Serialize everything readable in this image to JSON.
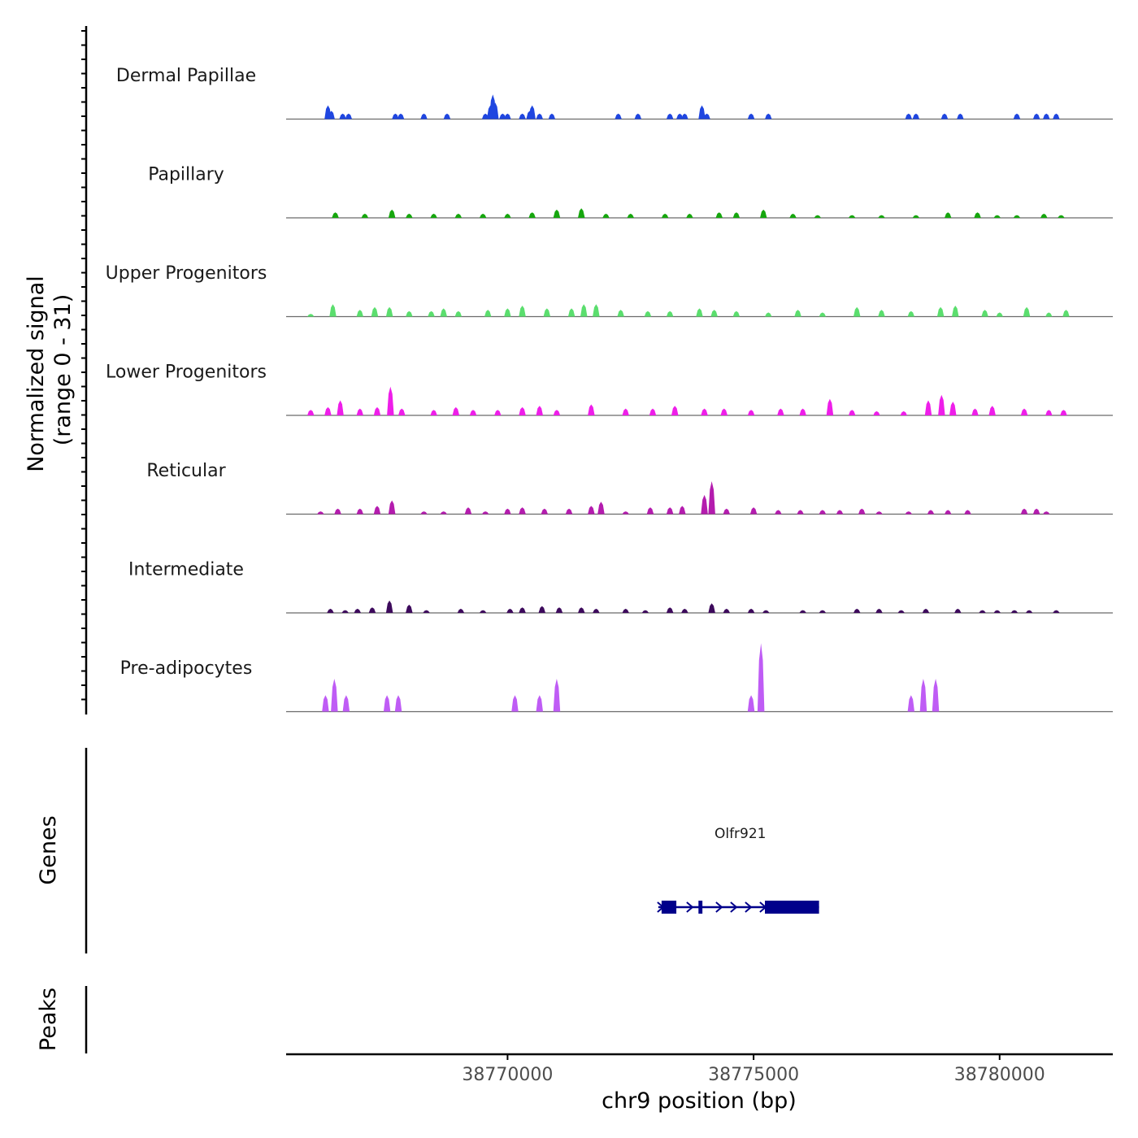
{
  "chart_data": {
    "type": "area",
    "title": "",
    "signal_axis_label_line1": "Normalized signal",
    "signal_axis_label_line2": "(range 0 - 31)",
    "genes_axis_label": "Genes",
    "peaks_axis_label": "Peaks",
    "xlabel": "chr9 position (bp)",
    "xlim": [
      38765500,
      38782300
    ],
    "ylim": [
      0,
      31
    ],
    "x_ticks": [
      38770000,
      38775000,
      38780000
    ],
    "x_tick_labels": [
      "38770000",
      "38775000",
      "38780000"
    ],
    "tracks": [
      {
        "name": "Dermal Papillae",
        "color": "#1f46e0",
        "peaks": [
          [
            38766350,
            5
          ],
          [
            38766420,
            3
          ],
          [
            38766650,
            2
          ],
          [
            38766770,
            2
          ],
          [
            38767720,
            2
          ],
          [
            38767830,
            2
          ],
          [
            38768300,
            2
          ],
          [
            38768770,
            2
          ],
          [
            38769550,
            2
          ],
          [
            38769650,
            5
          ],
          [
            38769700,
            9
          ],
          [
            38769750,
            6
          ],
          [
            38769900,
            2
          ],
          [
            38770000,
            2
          ],
          [
            38770300,
            2
          ],
          [
            38770450,
            3
          ],
          [
            38770500,
            5
          ],
          [
            38770650,
            2
          ],
          [
            38770900,
            2
          ],
          [
            38772250,
            2
          ],
          [
            38772650,
            2
          ],
          [
            38773300,
            2
          ],
          [
            38773500,
            2
          ],
          [
            38773600,
            2
          ],
          [
            38773950,
            5
          ],
          [
            38774050,
            2
          ],
          [
            38774950,
            2
          ],
          [
            38775300,
            2
          ],
          [
            38778150,
            2
          ],
          [
            38778300,
            2
          ],
          [
            38778880,
            2
          ],
          [
            38779200,
            2
          ],
          [
            38780350,
            2
          ],
          [
            38780750,
            2
          ],
          [
            38780950,
            2
          ],
          [
            38781150,
            2
          ]
        ]
      },
      {
        "name": "Papillary",
        "color": "#16a60e",
        "peaks": [
          [
            38766500,
            2
          ],
          [
            38767100,
            1.5
          ],
          [
            38767650,
            3
          ],
          [
            38768000,
            1.5
          ],
          [
            38768500,
            1.5
          ],
          [
            38769000,
            1.5
          ],
          [
            38769500,
            1.5
          ],
          [
            38770000,
            1.5
          ],
          [
            38770500,
            2
          ],
          [
            38771000,
            3
          ],
          [
            38771500,
            3.5
          ],
          [
            38772000,
            1.5
          ],
          [
            38772500,
            1.5
          ],
          [
            38773200,
            1.5
          ],
          [
            38773700,
            1.5
          ],
          [
            38774300,
            2
          ],
          [
            38774650,
            2
          ],
          [
            38775200,
            3
          ],
          [
            38775800,
            1.5
          ],
          [
            38776300,
            1
          ],
          [
            38777000,
            1
          ],
          [
            38777600,
            1
          ],
          [
            38778300,
            1
          ],
          [
            38778950,
            2
          ],
          [
            38779550,
            2
          ],
          [
            38779950,
            1
          ],
          [
            38780350,
            1
          ],
          [
            38780900,
            1.5
          ],
          [
            38781250,
            1
          ]
        ]
      },
      {
        "name": "Upper Progenitors",
        "color": "#5bde6e",
        "peaks": [
          [
            38766000,
            1
          ],
          [
            38766450,
            4.5
          ],
          [
            38767000,
            2.5
          ],
          [
            38767300,
            3.5
          ],
          [
            38767600,
            3.5
          ],
          [
            38768000,
            2
          ],
          [
            38768450,
            2
          ],
          [
            38768700,
            3
          ],
          [
            38769000,
            2
          ],
          [
            38769600,
            2.5
          ],
          [
            38770000,
            3
          ],
          [
            38770300,
            4
          ],
          [
            38770800,
            3
          ],
          [
            38771300,
            3
          ],
          [
            38771550,
            4.5
          ],
          [
            38771800,
            4.5
          ],
          [
            38772300,
            2.5
          ],
          [
            38772850,
            2
          ],
          [
            38773300,
            2
          ],
          [
            38773900,
            3
          ],
          [
            38774200,
            2.5
          ],
          [
            38774650,
            2
          ],
          [
            38775300,
            1.5
          ],
          [
            38775900,
            2.5
          ],
          [
            38776400,
            1.5
          ],
          [
            38777100,
            3.5
          ],
          [
            38777600,
            2.5
          ],
          [
            38778200,
            2
          ],
          [
            38778800,
            3.5
          ],
          [
            38779100,
            4
          ],
          [
            38779700,
            2.5
          ],
          [
            38780000,
            1.5
          ],
          [
            38780550,
            3.5
          ],
          [
            38781000,
            1.5
          ],
          [
            38781350,
            2.5
          ]
        ]
      },
      {
        "name": "Lower Progenitors",
        "color": "#ee1ee9",
        "peaks": [
          [
            38766000,
            2
          ],
          [
            38766350,
            3
          ],
          [
            38766600,
            5.5
          ],
          [
            38767000,
            2.5
          ],
          [
            38767350,
            3
          ],
          [
            38767620,
            10.5
          ],
          [
            38767850,
            2.5
          ],
          [
            38768500,
            2
          ],
          [
            38768950,
            3
          ],
          [
            38769300,
            2
          ],
          [
            38769800,
            2
          ],
          [
            38770300,
            3
          ],
          [
            38770650,
            3.5
          ],
          [
            38771000,
            2
          ],
          [
            38771700,
            4
          ],
          [
            38772400,
            2.5
          ],
          [
            38772950,
            2.5
          ],
          [
            38773400,
            3.5
          ],
          [
            38774000,
            2.5
          ],
          [
            38774400,
            2.5
          ],
          [
            38774950,
            2
          ],
          [
            38775550,
            2.5
          ],
          [
            38776000,
            2.5
          ],
          [
            38776550,
            6
          ],
          [
            38777000,
            2
          ],
          [
            38777500,
            1.5
          ],
          [
            38778050,
            1.5
          ],
          [
            38778550,
            5.5
          ],
          [
            38778820,
            7.5
          ],
          [
            38779050,
            5
          ],
          [
            38779500,
            2.5
          ],
          [
            38779850,
            3.5
          ],
          [
            38780500,
            2.5
          ],
          [
            38781000,
            2
          ],
          [
            38781300,
            2
          ]
        ]
      },
      {
        "name": "Reticular",
        "color": "#b41cae",
        "peaks": [
          [
            38766200,
            1
          ],
          [
            38766550,
            2
          ],
          [
            38767000,
            2
          ],
          [
            38767350,
            3
          ],
          [
            38767650,
            5
          ],
          [
            38768300,
            1
          ],
          [
            38768700,
            1
          ],
          [
            38769200,
            2.5
          ],
          [
            38769550,
            1
          ],
          [
            38770000,
            2
          ],
          [
            38770300,
            2.5
          ],
          [
            38770750,
            2
          ],
          [
            38771250,
            2
          ],
          [
            38771700,
            3
          ],
          [
            38771900,
            4.5
          ],
          [
            38772400,
            1
          ],
          [
            38772900,
            2.5
          ],
          [
            38773300,
            2.5
          ],
          [
            38773550,
            3
          ],
          [
            38774000,
            7
          ],
          [
            38774150,
            12
          ],
          [
            38774450,
            2
          ],
          [
            38775000,
            2.5
          ],
          [
            38775500,
            1.5
          ],
          [
            38775950,
            1.5
          ],
          [
            38776400,
            1.5
          ],
          [
            38776750,
            1.5
          ],
          [
            38777200,
            2
          ],
          [
            38777550,
            1
          ],
          [
            38778150,
            1
          ],
          [
            38778600,
            1.5
          ],
          [
            38778950,
            1.5
          ],
          [
            38779350,
            1.5
          ],
          [
            38780500,
            2
          ],
          [
            38780750,
            2
          ],
          [
            38780950,
            1
          ]
        ]
      },
      {
        "name": "Intermediate",
        "color": "#3d0a5c",
        "peaks": [
          [
            38766400,
            1.5
          ],
          [
            38766700,
            1
          ],
          [
            38766950,
            1.5
          ],
          [
            38767250,
            2
          ],
          [
            38767600,
            4.5
          ],
          [
            38768000,
            3
          ],
          [
            38768350,
            1
          ],
          [
            38769050,
            1.5
          ],
          [
            38769500,
            1
          ],
          [
            38770050,
            1.5
          ],
          [
            38770300,
            2
          ],
          [
            38770700,
            2.5
          ],
          [
            38771050,
            2
          ],
          [
            38771500,
            2
          ],
          [
            38771800,
            1.5
          ],
          [
            38772400,
            1.5
          ],
          [
            38772800,
            1
          ],
          [
            38773300,
            2
          ],
          [
            38773600,
            1.5
          ],
          [
            38774150,
            3.5
          ],
          [
            38774450,
            1.5
          ],
          [
            38774950,
            1.5
          ],
          [
            38775250,
            1
          ],
          [
            38776000,
            1
          ],
          [
            38776400,
            1
          ],
          [
            38777100,
            1.5
          ],
          [
            38777550,
            1.5
          ],
          [
            38778000,
            1
          ],
          [
            38778500,
            1.5
          ],
          [
            38779150,
            1.5
          ],
          [
            38779650,
            1
          ],
          [
            38779950,
            1
          ],
          [
            38780300,
            1
          ],
          [
            38780600,
            1
          ],
          [
            38781150,
            1
          ]
        ]
      },
      {
        "name": "Pre-adipocytes",
        "color": "#bf5cf5",
        "peaks": [
          [
            38766300,
            6
          ],
          [
            38766480,
            12
          ],
          [
            38766720,
            6
          ],
          [
            38767550,
            6
          ],
          [
            38767780,
            6
          ],
          [
            38770150,
            6
          ],
          [
            38770650,
            6
          ],
          [
            38771000,
            12
          ],
          [
            38774950,
            6
          ],
          [
            38775150,
            25
          ],
          [
            38778200,
            6
          ],
          [
            38778450,
            12
          ],
          [
            38778700,
            12
          ]
        ]
      }
    ],
    "genes": [
      {
        "name": "Olfr921",
        "start": 38773130,
        "end": 38776330,
        "strand": "+",
        "exons": [
          [
            38773130,
            38773430
          ],
          [
            38773880,
            38773960
          ],
          [
            38775230,
            38776330
          ]
        ]
      }
    ],
    "peak_regions": []
  }
}
